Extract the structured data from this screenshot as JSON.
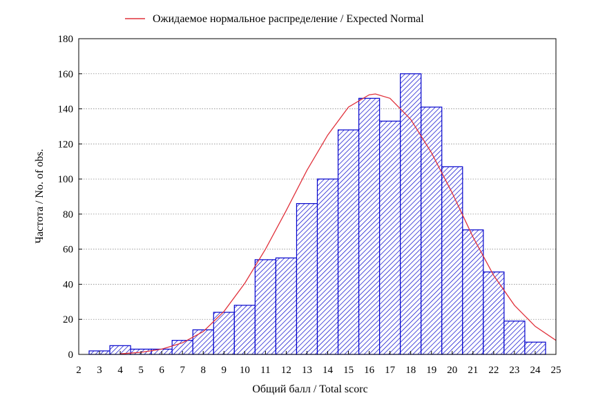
{
  "chart_data": {
    "type": "bar",
    "subtype": "histogram",
    "legend": {
      "label": "Ожидаемое нормальное распределение / Expected Normal",
      "position": "top",
      "line_color": "#e0303a"
    },
    "xlabel": "Общий балл / Total scorc",
    "ylabel": "Частота / No. of obs.",
    "xlim": [
      2,
      25
    ],
    "ylim": [
      0,
      180
    ],
    "x_ticks": [
      2,
      3,
      4,
      5,
      6,
      7,
      8,
      9,
      10,
      11,
      12,
      13,
      14,
      15,
      16,
      17,
      18,
      19,
      20,
      21,
      22,
      23,
      24,
      25
    ],
    "y_ticks": [
      0,
      20,
      40,
      60,
      80,
      100,
      120,
      140,
      160,
      180
    ],
    "grid": "horizontal dotted",
    "bar_color": "#0000cc",
    "bar_fill": "diagonal hatch",
    "bin_width": 1,
    "bins": [
      {
        "from": 2.5,
        "to": 3.5,
        "count": 2
      },
      {
        "from": 3.5,
        "to": 4.5,
        "count": 5
      },
      {
        "from": 4.5,
        "to": 5.5,
        "count": 3
      },
      {
        "from": 5.5,
        "to": 6.5,
        "count": 3
      },
      {
        "from": 6.5,
        "to": 7.5,
        "count": 8
      },
      {
        "from": 7.5,
        "to": 8.5,
        "count": 14
      },
      {
        "from": 8.5,
        "to": 9.5,
        "count": 24
      },
      {
        "from": 9.5,
        "to": 10.5,
        "count": 28
      },
      {
        "from": 10.5,
        "to": 11.5,
        "count": 54
      },
      {
        "from": 11.5,
        "to": 12.5,
        "count": 55
      },
      {
        "from": 12.5,
        "to": 13.5,
        "count": 86
      },
      {
        "from": 13.5,
        "to": 14.5,
        "count": 100
      },
      {
        "from": 14.5,
        "to": 15.5,
        "count": 128
      },
      {
        "from": 15.5,
        "to": 16.5,
        "count": 146
      },
      {
        "from": 16.5,
        "to": 17.5,
        "count": 133
      },
      {
        "from": 17.5,
        "to": 18.5,
        "count": 160
      },
      {
        "from": 18.5,
        "to": 19.5,
        "count": 141
      },
      {
        "from": 19.5,
        "to": 20.5,
        "count": 107
      },
      {
        "from": 20.5,
        "to": 21.5,
        "count": 71
      },
      {
        "from": 21.5,
        "to": 22.5,
        "count": 47
      },
      {
        "from": 22.5,
        "to": 23.5,
        "count": 19
      },
      {
        "from": 23.5,
        "to": 24.5,
        "count": 7
      }
    ],
    "expected_normal": {
      "peak": 148.5,
      "peak_at": 16.3,
      "x": [
        4,
        5,
        6,
        7,
        8,
        9,
        10,
        11,
        12,
        13,
        14,
        15,
        16,
        16.3,
        17,
        18,
        19,
        20,
        21,
        22,
        23,
        24,
        25
      ],
      "y": [
        0.3,
        1.2,
        3,
        6.6,
        13,
        24.5,
        40.5,
        60,
        82,
        105,
        125,
        141,
        148,
        148.5,
        146,
        134,
        115,
        92,
        67,
        45,
        28,
        16,
        8
      ]
    }
  }
}
